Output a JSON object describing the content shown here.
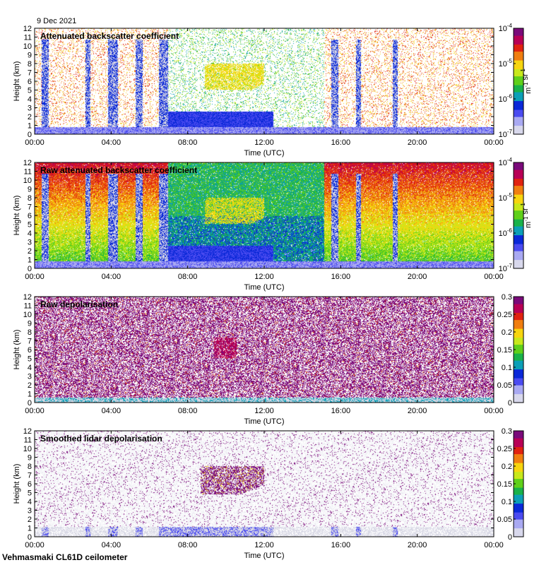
{
  "header": {
    "date": "9 Dec 2021"
  },
  "footer": {
    "instrument": "Vehmasmaki CL61D ceilometer"
  },
  "colors": {
    "background_blue": "#4a55e8",
    "missing_grey": "#d9d9e6",
    "palette": [
      "#d8d8ec",
      "#a9a9f2",
      "#4b4bf0",
      "#0a28d8",
      "#0c9fb7",
      "#19b24a",
      "#5fd01a",
      "#c8e81b",
      "#f7d50f",
      "#f07e10",
      "#e02210",
      "#b80055",
      "#7a0a7a"
    ]
  },
  "chart_data": [
    {
      "type": "heatmap",
      "title": "Attenuated backscatter coefficient",
      "xlabel": "Time (UTC)",
      "ylabel": "Height (km)",
      "x_ticks": [
        "00:00",
        "04:00",
        "08:00",
        "12:00",
        "16:00",
        "20:00",
        "00:00"
      ],
      "y_ticks": [
        "0",
        "1",
        "2",
        "3",
        "4",
        "5",
        "6",
        "7",
        "8",
        "9",
        "10",
        "11",
        "12"
      ],
      "ylim": [
        0,
        12
      ],
      "colorbar": {
        "scale": "log",
        "unit_label": "m-1 sr-1",
        "ticks": [
          "10-7",
          "10-6",
          "10-5",
          "10-4"
        ]
      },
      "noise_level": 0.35
    },
    {
      "type": "heatmap",
      "title": "Raw attenuated backscatter coefficient",
      "xlabel": "Time (UTC)",
      "ylabel": "Height (km)",
      "x_ticks": [
        "00:00",
        "04:00",
        "08:00",
        "12:00",
        "16:00",
        "20:00",
        "00:00"
      ],
      "y_ticks": [
        "0",
        "1",
        "2",
        "3",
        "4",
        "5",
        "6",
        "7",
        "8",
        "9",
        "10",
        "11",
        "12"
      ],
      "ylim": [
        0,
        12
      ],
      "colorbar": {
        "scale": "log",
        "unit_label": "m-1 sr-1",
        "ticks": [
          "10-7",
          "10-6",
          "10-5",
          "10-4"
        ]
      },
      "noise_level": 1.0
    },
    {
      "type": "heatmap",
      "title": "Raw depolarisation",
      "xlabel": "Time (UTC)",
      "ylabel": "Height (km)",
      "x_ticks": [
        "00:00",
        "04:00",
        "08:00",
        "12:00",
        "16:00",
        "20:00",
        "00:00"
      ],
      "y_ticks": [
        "0",
        "1",
        "2",
        "3",
        "4",
        "5",
        "6",
        "7",
        "8",
        "9",
        "10",
        "11",
        "12"
      ],
      "ylim": [
        0,
        12
      ],
      "colorbar": {
        "scale": "linear",
        "unit_label": "",
        "ticks": [
          "0",
          "0.05",
          "0.1",
          "0.15",
          "0.2",
          "0.25",
          "0.3"
        ]
      },
      "noise_level": 1.0
    },
    {
      "type": "heatmap",
      "title": "Smoothed lidar depolarisation",
      "xlabel": "Time (UTC)",
      "ylabel": "Height (km)",
      "x_ticks": [
        "00:00",
        "04:00",
        "08:00",
        "12:00",
        "16:00",
        "20:00",
        "00:00"
      ],
      "y_ticks": [
        "0",
        "1",
        "2",
        "3",
        "4",
        "5",
        "6",
        "7",
        "8",
        "9",
        "10",
        "11",
        "12"
      ],
      "ylim": [
        0,
        12
      ],
      "colorbar": {
        "scale": "linear",
        "unit_label": "",
        "ticks": [
          "0",
          "0.05",
          "0.1",
          "0.15",
          "0.2",
          "0.25",
          "0.3"
        ]
      },
      "noise_level": 0.08
    }
  ]
}
